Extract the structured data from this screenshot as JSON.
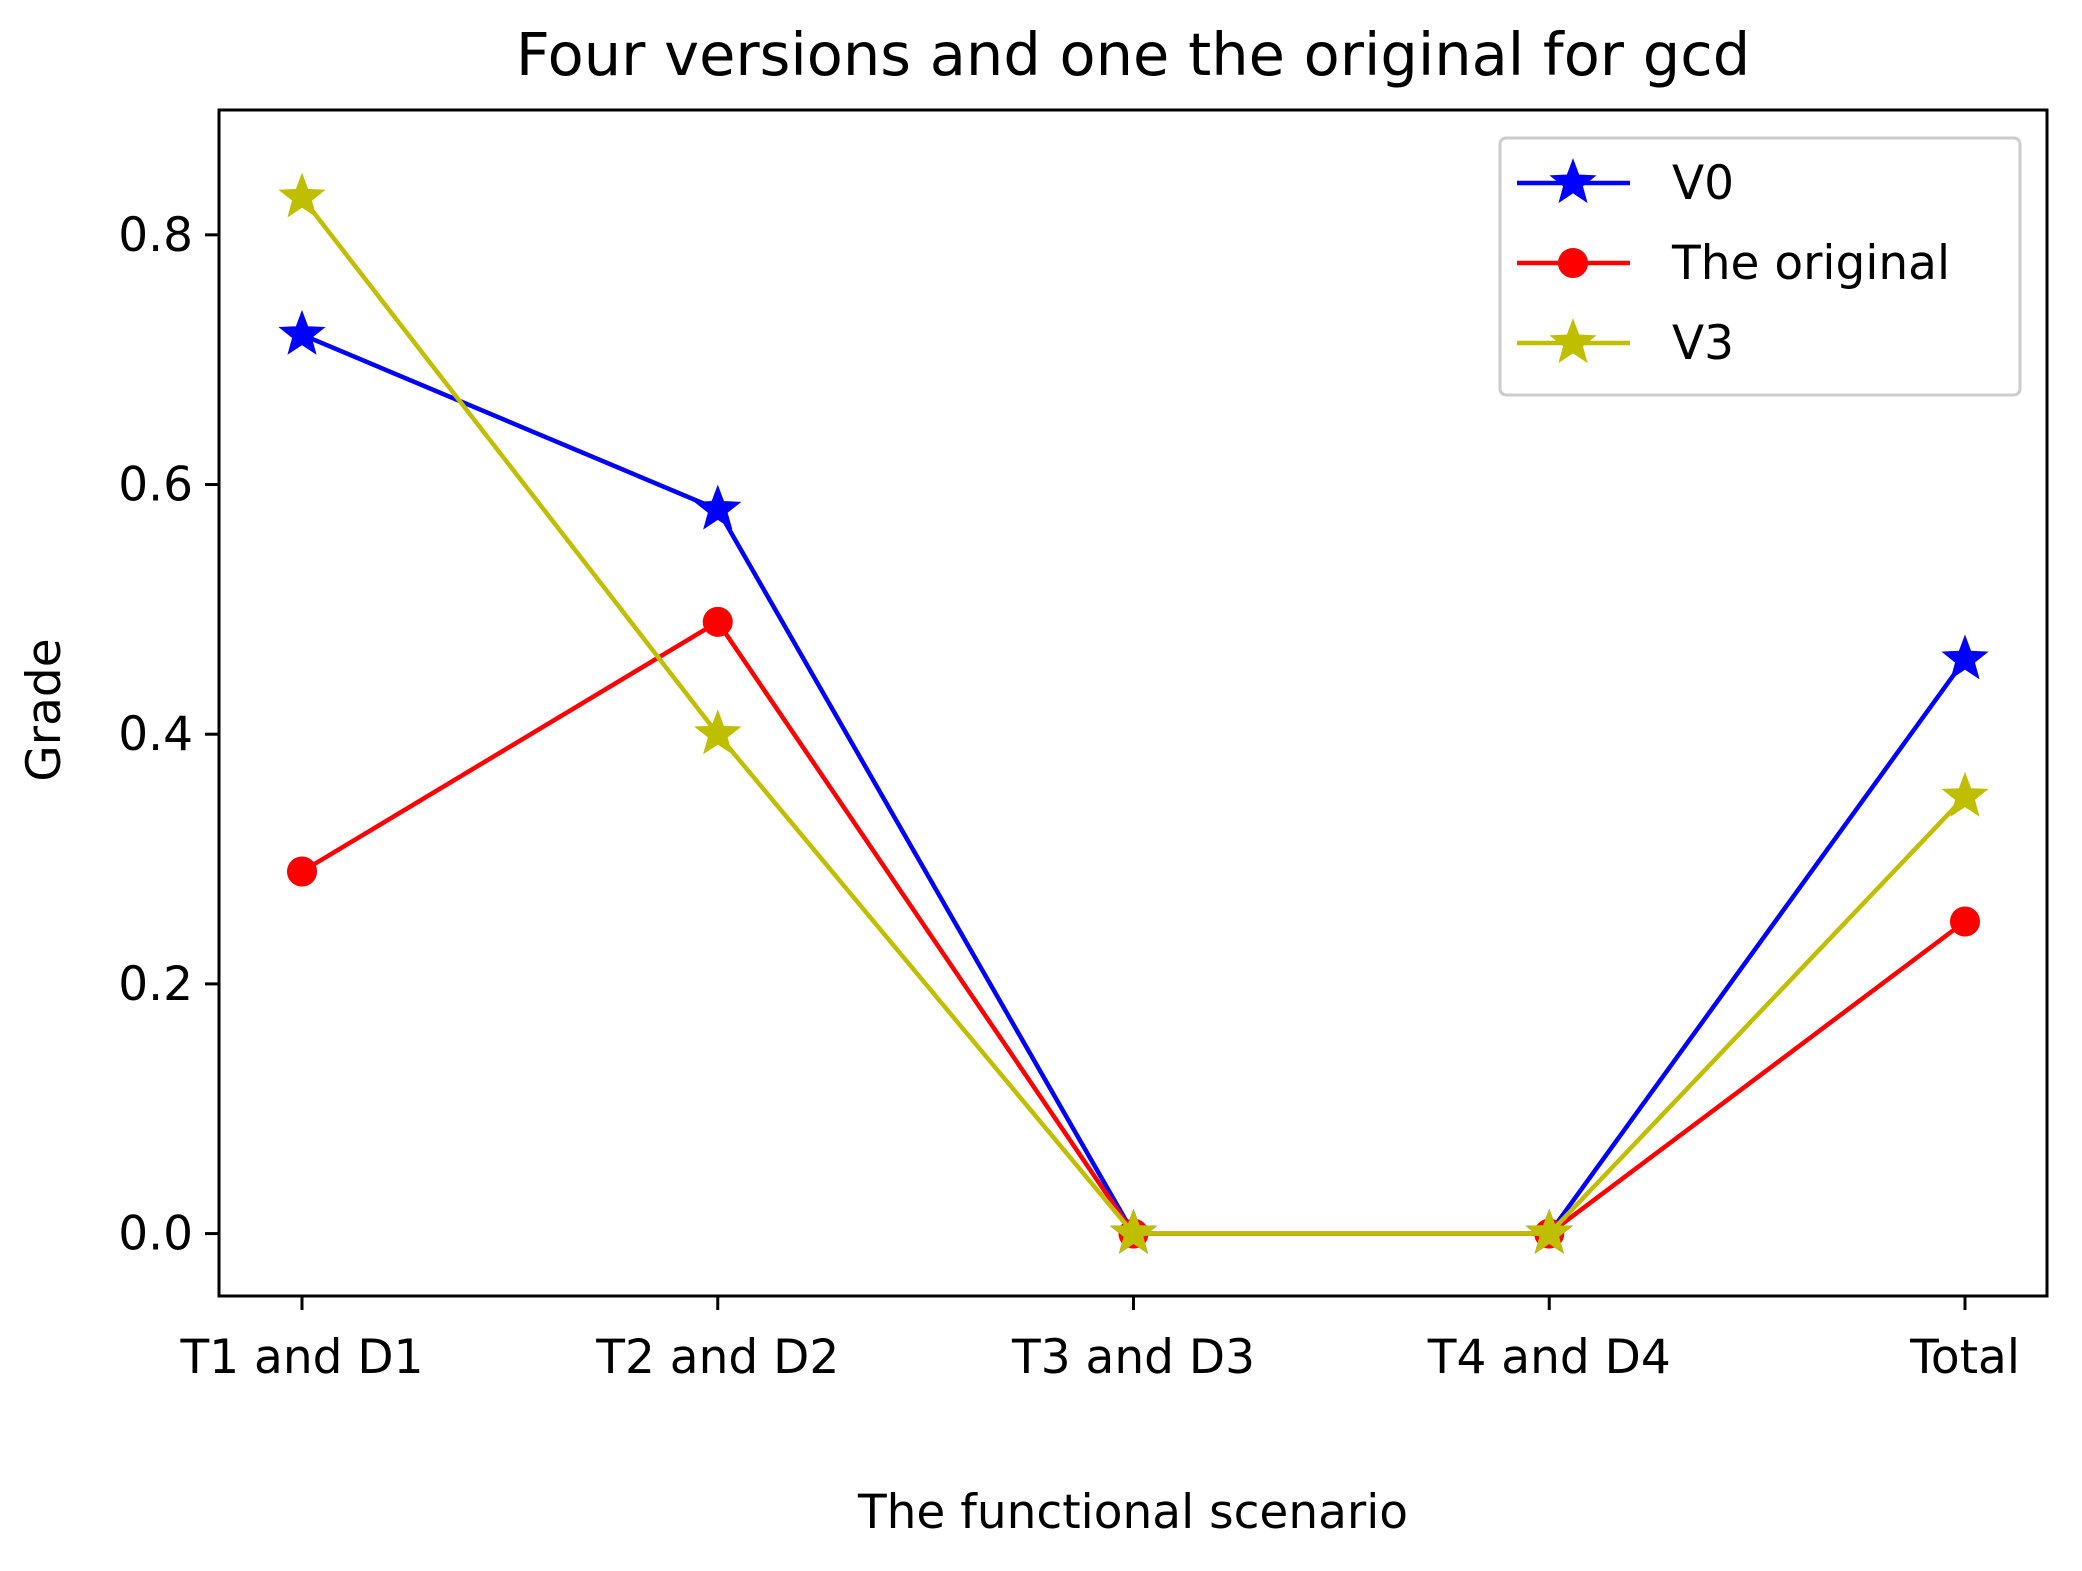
{
  "chart_data": {
    "type": "line",
    "title": "Four versions and one the original for gcd",
    "xlabel": "The functional scenario",
    "ylabel": "Grade",
    "categories": [
      "T1 and D1",
      "T2 and D2",
      "T3 and D3",
      "T4 and D4",
      "Total"
    ],
    "ylim": [
      -0.05,
      0.9
    ],
    "yticks": [
      0.0,
      0.2,
      0.4,
      0.6,
      0.8
    ],
    "ytick_labels": [
      "0.0",
      "0.2",
      "0.4",
      "0.6",
      "0.8"
    ],
    "grid": false,
    "legend_position": "top-right",
    "series": [
      {
        "name": "V0",
        "color": "#0000ff",
        "marker": "star",
        "values": [
          0.72,
          0.58,
          0.0,
          0.0,
          0.46
        ]
      },
      {
        "name": "The original",
        "color": "#ff0000",
        "marker": "circle",
        "values": [
          0.29,
          0.49,
          0.0,
          0.0,
          0.25
        ]
      },
      {
        "name": "V3",
        "color": "#bfbf00",
        "marker": "star",
        "values": [
          0.83,
          0.4,
          0.0,
          0.0,
          0.35
        ]
      }
    ]
  }
}
